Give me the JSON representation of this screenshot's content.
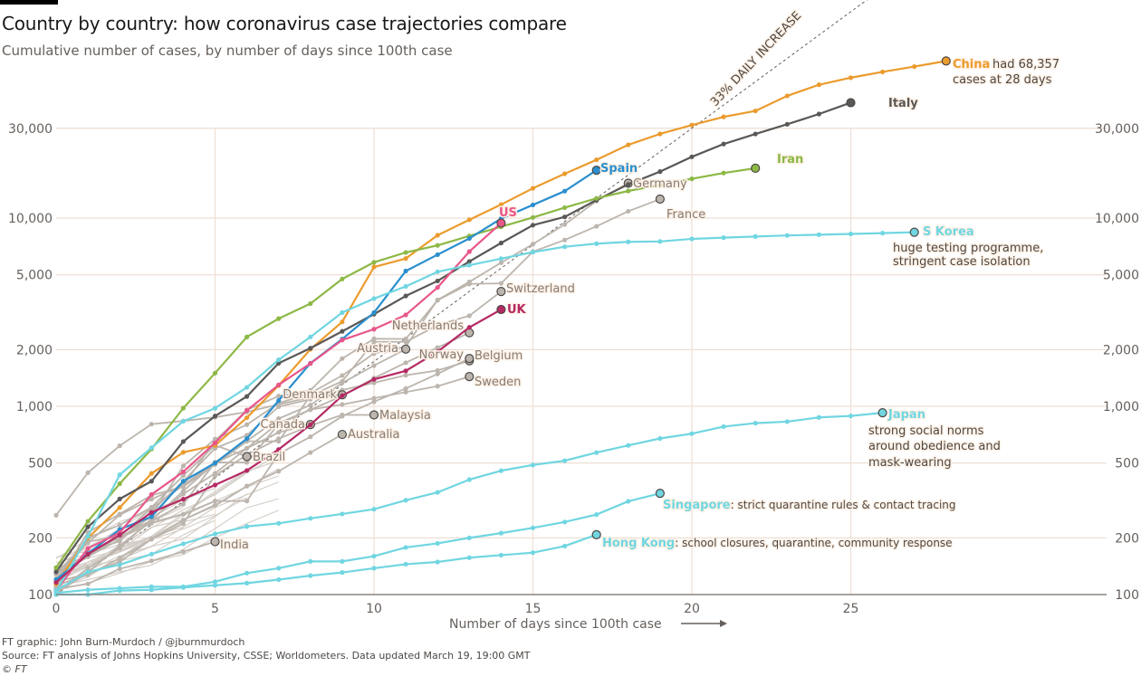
{
  "header": {
    "title": "Country by country: how coronavirus case trajectories compare",
    "subtitle": "Cumulative number of cases, by number of days since 100th case"
  },
  "footer": {
    "credit": "FT graphic: John Burn-Murdoch / @jburnmurdoch",
    "source": "Source: FT analysis of Johns Hopkins University, CSSE; Worldometers. Data updated March 19, 19:00 GMT",
    "copyright": "© FT"
  },
  "chart_data": {
    "type": "line",
    "title": "Country by country: how coronavirus case trajectories compare",
    "subtitle": "Cumulative number of cases, by number of days since 100th case",
    "xlabel": "Number of days since 100th case",
    "ylabel": "",
    "yscale": "log",
    "xlim": [
      0,
      28
    ],
    "ylim": [
      100,
      80000
    ],
    "x_ticks": [
      0,
      5,
      10,
      15,
      20,
      25
    ],
    "y_ticks": [
      100,
      200,
      500,
      1000,
      2000,
      5000,
      10000,
      30000
    ],
    "y_tick_labels": [
      "100",
      "200",
      "500",
      "1,000",
      "2,000",
      "5,000",
      "10,000",
      "30,000"
    ],
    "grid": true,
    "legend": "none (direct labels)",
    "reference_line": {
      "label": "33% DAILY INCREASE",
      "daily_growth": 0.33,
      "start": 100
    },
    "series": [
      {
        "name": "China",
        "color": "#eb9b2d",
        "highlight": true,
        "annotation": "had 68,357 cases at 28 days",
        "values": [
          114,
          200,
          290,
          440,
          570,
          620,
          870,
          1290,
          2010,
          2810,
          5500,
          6100,
          8100,
          9800,
          11800,
          14400,
          17200,
          20400,
          24500,
          28000,
          31200,
          34500,
          37100,
          44600,
          51100,
          55700,
          59800,
          63800,
          68357
        ]
      },
      {
        "name": "Italy",
        "color": "#5a5856",
        "highlight": true,
        "values": [
          132,
          229,
          322,
          400,
          650,
          888,
          1128,
          1694,
          2036,
          2502,
          3089,
          3858,
          4636,
          5883,
          7375,
          9172,
          10149,
          12462,
          15113,
          17660,
          21157,
          24747,
          27980,
          31506,
          35713,
          41035
        ]
      },
      {
        "name": "Iran",
        "color": "#8db846",
        "highlight": true,
        "values": [
          139,
          245,
          388,
          593,
          978,
          1501,
          2336,
          2922,
          3513,
          4747,
          5823,
          6566,
          7161,
          8042,
          9000,
          10075,
          11364,
          12729,
          13938,
          14991,
          16169,
          17361,
          18407
        ]
      },
      {
        "name": "Spain",
        "color": "#2a8fce",
        "highlight": true,
        "values": [
          120,
          165,
          222,
          259,
          400,
          500,
          673,
          1073,
          1695,
          2277,
          3146,
          5232,
          6391,
          7798,
          9942,
          11748,
          13910,
          17963
        ]
      },
      {
        "name": "US",
        "color": "#e8568a",
        "highlight": true,
        "values": [
          105,
          176,
          213,
          340,
          449,
          640,
          950,
          1300,
          1690,
          2250,
          2570,
          3060,
          4280,
          6640,
          9415
        ]
      },
      {
        "name": "Germany",
        "color": "#bcb5ad",
        "highlight": false,
        "values": [
          130,
          159,
          196,
          262,
          482,
          670,
          799,
          1040,
          1176,
          1457,
          1908,
          2078,
          3675,
          4585,
          5795,
          7272,
          9257,
          12327,
          15320
        ]
      },
      {
        "name": "France",
        "color": "#bcb5ad",
        "highlight": false,
        "values": [
          130,
          191,
          204,
          288,
          380,
          656,
          957,
          1134,
          1217,
          1794,
          2284,
          2281,
          3661,
          4469,
          4499,
          6633,
          7652,
          9043,
          10871,
          12612
        ]
      },
      {
        "name": "S Korea",
        "color": "#70d6e1",
        "highlight": true,
        "annotation": "huge testing programme, stringent case isolation",
        "values": [
          104,
          204,
          433,
          602,
          833,
          977,
          1261,
          1766,
          2337,
          3150,
          3736,
          4335,
          5186,
          5621,
          6088,
          6593,
          7041,
          7314,
          7478,
          7513,
          7755,
          7869,
          7979,
          8086,
          8162,
          8236,
          8320,
          8413
        ]
      },
      {
        "name": "Switzerland",
        "color": "#bcb5ad",
        "highlight": false,
        "values": [
          114,
          214,
          268,
          337,
          374,
          491,
          652,
          652,
          1139,
          1359,
          2200,
          2200,
          2700,
          3028,
          4075
        ]
      },
      {
        "name": "UK",
        "color": "#b52963",
        "highlight": true,
        "values": [
          116,
          164,
          207,
          273,
          321,
          382,
          456,
          590,
          798,
          1140,
          1391,
          1543,
          1950,
          2626,
          3269
        ]
      },
      {
        "name": "Netherlands",
        "color": "#bcb5ad",
        "highlight": false,
        "values": [
          128,
          188,
          265,
          321,
          382,
          503,
          503,
          804,
          959,
          1135,
          1413,
          1705,
          2051,
          2460
        ]
      },
      {
        "name": "Austria",
        "color": "#bcb5ad",
        "highlight": false,
        "values": [
          102,
          131,
          182,
          246,
          302,
          504,
          655,
          860,
          1016,
          1332,
          1646,
          2013
        ]
      },
      {
        "name": "Norway",
        "color": "#bcb5ad",
        "highlight": false,
        "values": [
          113,
          169,
          192,
          277,
          400,
          598,
          702,
          996,
          1090,
          1221,
          1333,
          1463,
          1550,
          1746
        ]
      },
      {
        "name": "Belgium",
        "color": "#bcb5ad",
        "highlight": false,
        "values": [
          109,
          169,
          200,
          239,
          267,
          314,
          314,
          559,
          689,
          886,
          1058,
          1243,
          1486,
          1795
        ]
      },
      {
        "name": "Sweden",
        "color": "#bcb5ad",
        "highlight": false,
        "values": [
          137,
          161,
          203,
          248,
          355,
          500,
          599,
          814,
          961,
          1022,
          1103,
          1190,
          1279,
          1439
        ]
      },
      {
        "name": "Denmark",
        "color": "#bcb5ad",
        "highlight": false,
        "values": [
          264,
          444,
          617,
          804,
          836,
          875,
          933,
          1024,
          1115,
          1151
        ]
      },
      {
        "name": "Malaysia",
        "color": "#bcb5ad",
        "highlight": false,
        "values": [
          117,
          129,
          149,
          197,
          238,
          428,
          553,
          673,
          790,
          900,
          900
        ]
      },
      {
        "name": "Canada",
        "color": "#bcb5ad",
        "highlight": false,
        "values": [
          103,
          138,
          176,
          252,
          342,
          441,
          598,
          727,
          800
        ]
      },
      {
        "name": "Australia",
        "color": "#bcb5ad",
        "highlight": false,
        "values": [
          112,
          127,
          156,
          197,
          249,
          298,
          377,
          452,
          568,
          709
        ]
      },
      {
        "name": "Brazil",
        "color": "#bcb5ad",
        "highlight": false,
        "values": [
          121,
          200,
          234,
          291,
          428,
          621,
          541
        ]
      },
      {
        "name": "India",
        "color": "#bcb5ad",
        "highlight": false,
        "values": [
          107,
          114,
          137,
          151,
          169,
          191
        ]
      },
      {
        "name": "Japan",
        "color": "#70d6e1",
        "highlight": true,
        "annotation": "strong social norms around obedience and mask-wearing",
        "values": [
          105,
          132,
          144,
          164,
          186,
          210,
          230,
          239,
          254,
          268,
          284,
          317,
          349,
          408,
          455,
          488,
          514,
          568,
          620,
          675,
          716,
          780,
          814,
          829,
          873,
          889,
          924
        ]
      },
      {
        "name": "Singapore",
        "color": "#70d6e1",
        "highlight": true,
        "annotation": "strict quarantine rules & contact tracing",
        "values": [
          102,
          106,
          108,
          110,
          110,
          117,
          130,
          138,
          150,
          150,
          160,
          178,
          187,
          200,
          212,
          226,
          243,
          266,
          313,
          345
        ]
      },
      {
        "name": "Hong Kong",
        "color": "#70d6e1",
        "highlight": true,
        "annotation": "school closures, quarantine, community response",
        "values": [
          100,
          100,
          105,
          106,
          109,
          112,
          115,
          120,
          126,
          131,
          138,
          145,
          149,
          157,
          162,
          167,
          181,
          208
        ]
      }
    ],
    "background_series_count": 20,
    "labels": [
      {
        "series": "China",
        "text": "China",
        "note": "had 68,357",
        "note2": "cases at 28 days"
      },
      {
        "series": "Italy",
        "text": "Italy"
      },
      {
        "series": "Iran",
        "text": "Iran"
      },
      {
        "series": "Spain",
        "text": "Spain"
      },
      {
        "series": "US",
        "text": "US"
      },
      {
        "series": "Germany",
        "text": "Germany"
      },
      {
        "series": "France",
        "text": "France"
      },
      {
        "series": "S Korea",
        "text": "S Korea",
        "note": "huge testing programme,",
        "note2": "stringent case isolation"
      },
      {
        "series": "Switzerland",
        "text": "Switzerland"
      },
      {
        "series": "UK",
        "text": "UK"
      },
      {
        "series": "Netherlands",
        "text": "Netherlands"
      },
      {
        "series": "Austria",
        "text": "Austria"
      },
      {
        "series": "Norway",
        "text": "Norway"
      },
      {
        "series": "Belgium",
        "text": "Belgium"
      },
      {
        "series": "Sweden",
        "text": "Sweden"
      },
      {
        "series": "Denmark",
        "text": "Denmark"
      },
      {
        "series": "Malaysia",
        "text": "Malaysia"
      },
      {
        "series": "Canada",
        "text": "Canada"
      },
      {
        "series": "Australia",
        "text": "Australia"
      },
      {
        "series": "Brazil",
        "text": "Brazil"
      },
      {
        "series": "India",
        "text": "India"
      },
      {
        "series": "Japan",
        "text": "Japan",
        "note": "strong social norms",
        "note2": "around obedience and",
        "note3": "mask-wearing"
      },
      {
        "series": "Singapore",
        "text": "Singapore",
        "note": ": strict quarantine rules & contact tracing"
      },
      {
        "series": "Hong Kong",
        "text": "Hong Kong",
        "note": ": school closures, quarantine, community response"
      }
    ]
  }
}
